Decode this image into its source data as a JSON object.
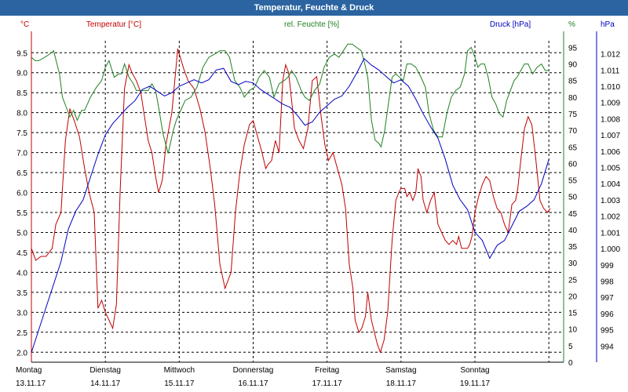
{
  "window": {
    "title": "Temperatur, Feuchte & Druck"
  },
  "colors": {
    "temperature": "#c00000",
    "humidity": "#208020",
    "pressure": "#0000c0",
    "title_bar": "#2b64a0"
  },
  "chart_data": {
    "type": "line",
    "title": "Temperatur, Feuchte & Druck",
    "grid": true,
    "axes": {
      "left": {
        "unit": "°C",
        "label": "Temperatur [°C]",
        "ylim": [
          1.75,
          9.8
        ],
        "ticks": [
          "2.0",
          "2.5",
          "3.0",
          "3.5",
          "4.0",
          "4.5",
          "5.0",
          "5.5",
          "6.0",
          "6.5",
          "7.0",
          "7.5",
          "8.0",
          "8.5",
          "9.0",
          "9.5"
        ]
      },
      "middle": {
        "unit": "%",
        "label": "rel. Feuchte [%]",
        "ylim": [
          0,
          97
        ],
        "ticks": [
          "0",
          "5",
          "10",
          "15",
          "20",
          "25",
          "30",
          "35",
          "40",
          "45",
          "50",
          "55",
          "60",
          "65",
          "70",
          "75",
          "80",
          "85",
          "90",
          "95"
        ]
      },
      "right": {
        "unit": "hPa",
        "label": "Druck [hPa]",
        "ylim": [
          993.0,
          1012.8
        ],
        "ticks": [
          "994",
          "995",
          "996",
          "997",
          "998",
          "999",
          "1.000",
          "1.001",
          "1.002",
          "1.003",
          "1.004",
          "1.005",
          "1.006",
          "1.007",
          "1.008",
          "1.009",
          "1.010",
          "1.011",
          "1.012"
        ]
      }
    },
    "x_days": [
      {
        "day": "Montag",
        "date": "13.11.17"
      },
      {
        "day": "Dienstag",
        "date": "14.11.17"
      },
      {
        "day": "Mittwoch",
        "date": "15.11.17"
      },
      {
        "day": "Donnerstag",
        "date": "16.11.17"
      },
      {
        "day": "Freitag",
        "date": "17.11.17"
      },
      {
        "day": "Samstag",
        "date": "18.11.17"
      },
      {
        "day": "Sonntag",
        "date": "19.11.17"
      }
    ],
    "x_range_days": [
      0,
      7.2
    ],
    "series": [
      {
        "name": "Temperatur [°C]",
        "axis": "left",
        "color": "#c00000",
        "x": [
          0,
          0.06,
          0.13,
          0.2,
          0.28,
          0.33,
          0.4,
          0.46,
          0.52,
          0.58,
          0.65,
          0.72,
          0.78,
          0.85,
          0.9,
          0.95,
          1.0,
          1.05,
          1.1,
          1.15,
          1.2,
          1.26,
          1.32,
          1.36,
          1.42,
          1.48,
          1.53,
          1.58,
          1.63,
          1.68,
          1.72,
          1.77,
          1.82,
          1.9,
          1.98,
          2.06,
          2.12,
          2.2,
          2.28,
          2.35,
          2.42,
          2.48,
          2.55,
          2.62,
          2.7,
          2.76,
          2.82,
          2.88,
          2.95,
          3.0,
          3.06,
          3.12,
          3.17,
          3.2,
          3.25,
          3.3,
          3.35,
          3.4,
          3.44,
          3.48,
          3.52,
          3.56,
          3.62,
          3.68,
          3.74,
          3.8,
          3.86,
          3.92,
          3.97,
          4.02,
          4.08,
          4.14,
          4.2,
          4.25,
          4.3,
          4.35,
          4.38,
          4.43,
          4.47,
          4.52,
          4.55,
          4.6,
          4.64,
          4.68,
          4.72,
          4.77,
          4.82,
          4.88,
          4.93,
          4.97,
          5.0,
          5.05,
          5.08,
          5.12,
          5.16,
          5.2,
          5.23,
          5.27,
          5.3,
          5.35,
          5.4,
          5.45,
          5.5,
          5.55,
          5.6,
          5.65,
          5.7,
          5.75,
          5.78,
          5.82,
          5.85,
          5.9,
          5.93,
          5.96,
          6.0,
          6.05,
          6.1,
          6.15,
          6.2,
          6.25,
          6.3,
          6.35,
          6.4,
          6.45,
          6.5,
          6.55,
          6.58,
          6.62,
          6.67,
          6.72,
          6.77,
          6.82,
          6.88,
          6.93,
          6.98,
          7.02
        ],
        "values": [
          4.6,
          4.3,
          4.4,
          4.4,
          4.6,
          5.2,
          5.5,
          7.3,
          8.1,
          7.8,
          7.4,
          6.6,
          6.0,
          5.5,
          3.1,
          3.3,
          3.0,
          2.8,
          2.6,
          3.2,
          6.0,
          8.6,
          9.2,
          9.0,
          8.8,
          8.5,
          7.9,
          7.3,
          7.0,
          6.4,
          6.0,
          6.3,
          7.2,
          8.0,
          9.6,
          9.1,
          8.8,
          8.6,
          8.1,
          7.5,
          6.6,
          5.7,
          4.2,
          3.6,
          4.0,
          5.5,
          6.5,
          7.2,
          7.7,
          7.8,
          7.4,
          7.0,
          6.6,
          6.7,
          6.8,
          7.3,
          7.0,
          8.8,
          9.2,
          9.0,
          8.3,
          7.6,
          7.3,
          7.1,
          7.6,
          8.8,
          8.9,
          7.9,
          7.2,
          6.8,
          7.0,
          6.6,
          6.2,
          5.6,
          4.2,
          3.6,
          2.8,
          2.5,
          2.6,
          2.9,
          3.5,
          2.8,
          2.5,
          2.2,
          2.0,
          2.3,
          3.0,
          4.8,
          5.8,
          6.0,
          6.1,
          6.1,
          5.9,
          6.0,
          5.8,
          6.0,
          6.6,
          6.4,
          5.8,
          5.5,
          5.8,
          6.0,
          5.2,
          5.0,
          4.8,
          4.7,
          4.8,
          4.7,
          4.9,
          4.6,
          4.6,
          4.6,
          4.7,
          4.9,
          5.5,
          5.9,
          6.2,
          6.4,
          6.3,
          5.9,
          5.6,
          5.5,
          5.2,
          5.0,
          5.7,
          5.8,
          6.1,
          6.8,
          7.6,
          7.9,
          7.7,
          6.9,
          5.8,
          5.6,
          5.5,
          5.6
        ]
      },
      {
        "name": "rel. Feuchte [%]",
        "axis": "middle",
        "color": "#208020",
        "x": [
          0,
          0.05,
          0.1,
          0.18,
          0.25,
          0.3,
          0.38,
          0.42,
          0.47,
          0.52,
          0.57,
          0.62,
          0.68,
          0.72,
          0.8,
          0.88,
          0.95,
          1.0,
          1.05,
          1.12,
          1.18,
          1.22,
          1.26,
          1.32,
          1.38,
          1.42,
          1.48,
          1.52,
          1.58,
          1.63,
          1.68,
          1.72,
          1.78,
          1.85,
          1.92,
          1.96,
          2.0,
          2.08,
          2.16,
          2.24,
          2.32,
          2.4,
          2.48,
          2.55,
          2.62,
          2.68,
          2.75,
          2.82,
          2.88,
          2.95,
          3.02,
          3.08,
          3.15,
          3.22,
          3.28,
          3.35,
          3.42,
          3.47,
          3.52,
          3.58,
          3.65,
          3.7,
          3.76,
          3.83,
          3.9,
          3.96,
          4.03,
          4.1,
          4.16,
          4.22,
          4.28,
          4.34,
          4.4,
          4.46,
          4.5,
          4.55,
          4.6,
          4.65,
          4.7,
          4.73,
          4.78,
          4.83,
          4.88,
          4.93,
          4.98,
          5.03,
          5.08,
          5.14,
          5.2,
          5.27,
          5.33,
          5.38,
          5.44,
          5.5,
          5.56,
          5.62,
          5.68,
          5.74,
          5.8,
          5.86,
          5.9,
          5.95,
          6.0,
          6.04,
          6.08,
          6.13,
          6.18,
          6.23,
          6.28,
          6.33,
          6.38,
          6.43,
          6.48,
          6.53,
          6.57,
          6.62,
          6.67,
          6.72,
          6.78,
          6.84,
          6.9,
          6.95,
          7.0
        ],
        "values": [
          92,
          91,
          91,
          92,
          93,
          94,
          87,
          80,
          77,
          74,
          76,
          73,
          76,
          76,
          80,
          83,
          85,
          89,
          91,
          86,
          87,
          87,
          90,
          86,
          84,
          82,
          82,
          82,
          82,
          84,
          82,
          77,
          69,
          63,
          70,
          73,
          75,
          79,
          80,
          83,
          89,
          92,
          93,
          94,
          94,
          92,
          85,
          83,
          80,
          82,
          83,
          86,
          88,
          86,
          80,
          84,
          85,
          86,
          88,
          86,
          82,
          80,
          79,
          82,
          84,
          89,
          92,
          93,
          92,
          94,
          96,
          96,
          95,
          94,
          91,
          86,
          73,
          67,
          66,
          65,
          70,
          78,
          86,
          87,
          86,
          85,
          90,
          90,
          89,
          86,
          83,
          75,
          70,
          68,
          68,
          75,
          80,
          82,
          83,
          87,
          94,
          95,
          92,
          89,
          90,
          90,
          86,
          80,
          78,
          75,
          74,
          79,
          82,
          85,
          86,
          88,
          90,
          90,
          87,
          89,
          90,
          88,
          88
        ]
      },
      {
        "name": "Druck [hPa]",
        "axis": "pressure",
        "color": "#0000c0",
        "x": [
          0,
          0.1,
          0.2,
          0.3,
          0.4,
          0.5,
          0.6,
          0.7,
          0.8,
          0.9,
          1.0,
          1.1,
          1.2,
          1.3,
          1.4,
          1.5,
          1.6,
          1.7,
          1.8,
          1.9,
          2.0,
          2.1,
          2.2,
          2.3,
          2.4,
          2.5,
          2.6,
          2.7,
          2.8,
          2.9,
          3.0,
          3.1,
          3.2,
          3.3,
          3.4,
          3.5,
          3.6,
          3.7,
          3.8,
          3.9,
          4.0,
          4.1,
          4.2,
          4.3,
          4.4,
          4.5,
          4.6,
          4.7,
          4.8,
          4.9,
          5.0,
          5.1,
          5.2,
          5.3,
          5.4,
          5.5,
          5.6,
          5.7,
          5.8,
          5.9,
          6.0,
          6.1,
          6.2,
          6.3,
          6.4,
          6.5,
          6.6,
          6.7,
          6.8,
          6.9,
          7.0
        ],
        "values": [
          993.6,
          995.0,
          996.4,
          997.8,
          999.2,
          1001.2,
          1002.3,
          1003.0,
          1004.4,
          1005.8,
          1007.0,
          1007.7,
          1008.2,
          1008.7,
          1009.1,
          1009.8,
          1010.0,
          1009.7,
          1009.4,
          1009.6,
          1010.0,
          1010.2,
          1010.4,
          1010.2,
          1010.4,
          1011.0,
          1011.1,
          1010.3,
          1010.1,
          1010.3,
          1010.2,
          1009.8,
          1009.5,
          1009.2,
          1008.9,
          1008.7,
          1008.2,
          1007.6,
          1007.8,
          1008.4,
          1008.8,
          1009.2,
          1009.4,
          1010.0,
          1010.8,
          1011.7,
          1011.3,
          1011.0,
          1010.6,
          1010.2,
          1010.4,
          1010.0,
          1009.2,
          1008.3,
          1007.5,
          1006.8,
          1005.5,
          1003.9,
          1003.0,
          1002.4,
          1001.0,
          1000.5,
          999.4,
          1000.2,
          1000.5,
          1001.4,
          1002.3,
          1002.6,
          1003.0,
          1004.0,
          1005.5
        ]
      }
    ]
  }
}
